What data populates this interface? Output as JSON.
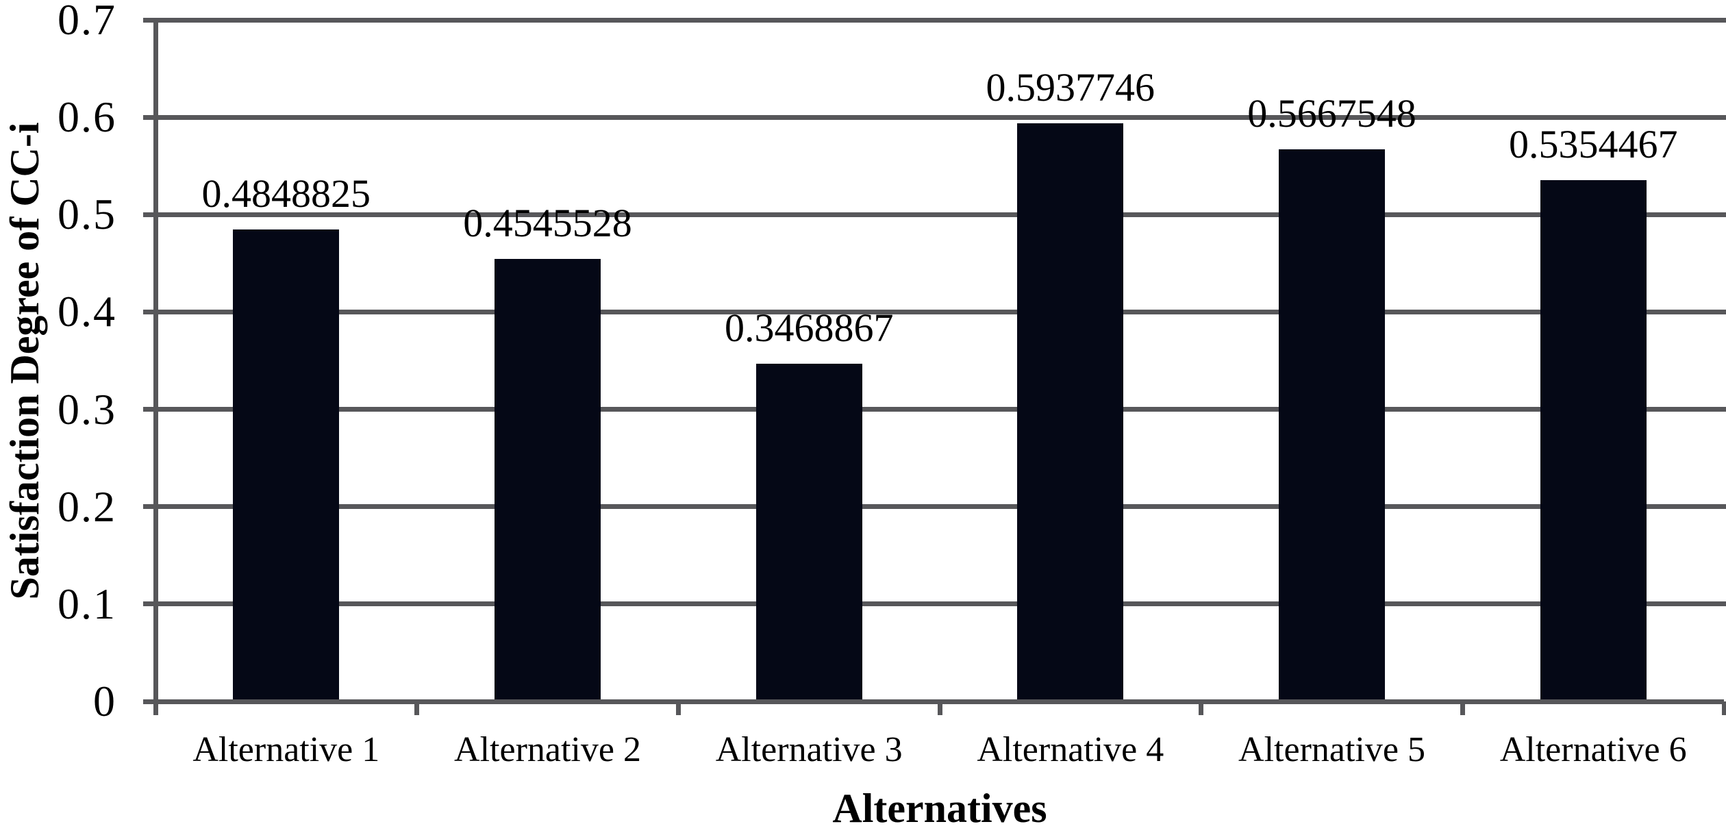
{
  "chart_data": {
    "type": "bar",
    "title": "",
    "categories": [
      "Alternative 1",
      "Alternative 2",
      "Alternative 3",
      "Alternative 4",
      "Alternative 5",
      "Alternative 6"
    ],
    "values": [
      0.4848825,
      0.4545528,
      0.3468867,
      0.5937746,
      0.5667548,
      0.5354467
    ],
    "data_labels": [
      "0.4848825",
      "0.4545528",
      "0.3468867",
      "0.5937746",
      "0.5667548",
      "0.5354467"
    ],
    "xlabel": "Alternatives",
    "ylabel": "Satisfaction Degree of CC-i",
    "ylim": [
      0,
      0.7
    ],
    "ytick_interval": 0.1,
    "ytick_labels": [
      "0",
      "0.1",
      "0.2",
      "0.3",
      "0.4",
      "0.5",
      "0.6",
      "0.7"
    ],
    "grid": "horizontal",
    "legend": "none",
    "colors": {
      "bar_fill": "#050816",
      "gridline": "#57575a",
      "axis": "#57575a",
      "text": "#000000",
      "background": "#ffffff"
    }
  }
}
